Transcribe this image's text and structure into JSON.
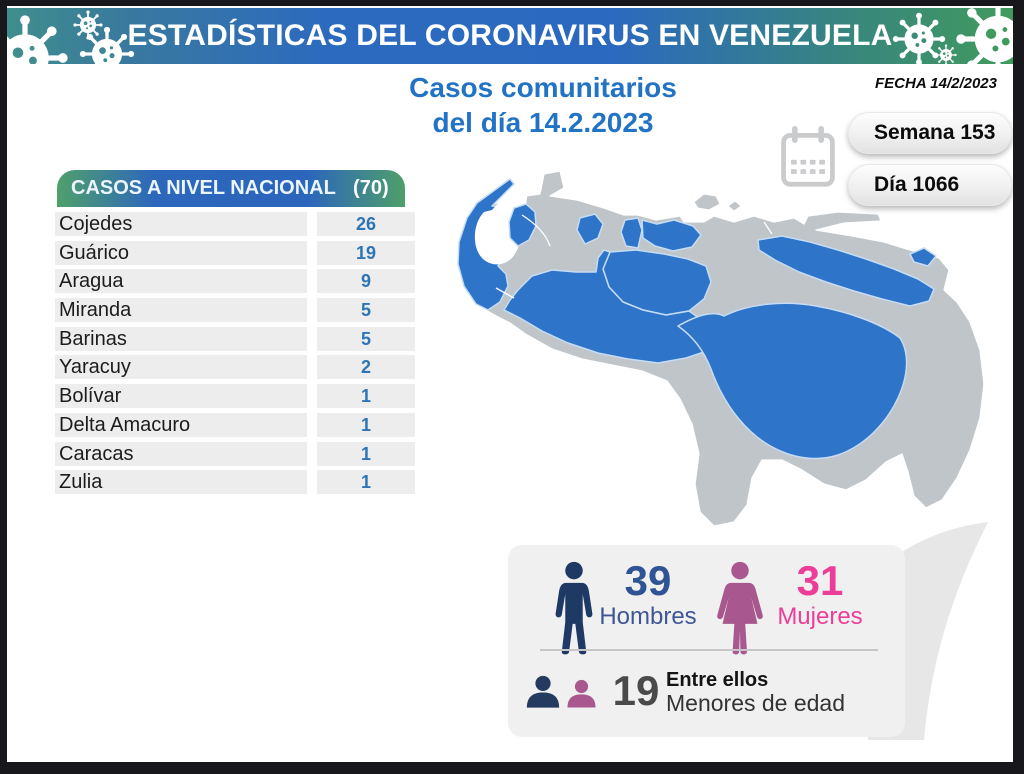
{
  "header": {
    "title": "ESTADÍSTICAS DEL CORONAVIRUS EN VENEZUELA"
  },
  "subtitle": {
    "line1": "Casos comunitarios",
    "line2": "del día 14.2.2023"
  },
  "meta": {
    "date_label": "FECHA 14/2/2023",
    "week_badge": "Semana 153",
    "day_badge": "Día 1066"
  },
  "cases_table": {
    "title": "CASOS A NIVEL NACIONAL",
    "total_label": "(70)",
    "rows": [
      {
        "state": "Cojedes",
        "cases": "26"
      },
      {
        "state": "Guárico",
        "cases": "19"
      },
      {
        "state": "Aragua",
        "cases": "9"
      },
      {
        "state": "Miranda",
        "cases": "5"
      },
      {
        "state": "Barinas",
        "cases": "5"
      },
      {
        "state": "Yaracuy",
        "cases": "2"
      },
      {
        "state": "Bolívar",
        "cases": "1"
      },
      {
        "state": "Delta Amacuro",
        "cases": "1"
      },
      {
        "state": "Caracas",
        "cases": "1"
      },
      {
        "state": "Zulia",
        "cases": "1"
      }
    ]
  },
  "demographics": {
    "men_value": "39",
    "men_label": "Hombres",
    "women_value": "31",
    "women_label": "Mujeres",
    "minors_value": "19",
    "minors_line1": "Entre ellos",
    "minors_line2": "Menores de edad"
  },
  "colors": {
    "banner_teal": "#3F8E8D",
    "banner_blue": "#2B69C0",
    "banner_green": "#419A5D",
    "subtitle_blue": "#2273C4",
    "map_highlight_blue": "#2E74C9",
    "map_base_gray": "#C0C5CA",
    "table_number_blue": "#2E75B6",
    "men_navy": "#1E3A64",
    "men_text_blue": "#2F5496",
    "women_pink": "#EC3E98",
    "women_plum": "#A8588E",
    "minors_gray": "#4A4A4A"
  },
  "chart_data": {
    "type": "table",
    "title": "CASOS A NIVEL NACIONAL (70)",
    "categories": [
      "Cojedes",
      "Guárico",
      "Aragua",
      "Miranda",
      "Barinas",
      "Yaracuy",
      "Bolívar",
      "Delta Amacuro",
      "Caracas",
      "Zulia"
    ],
    "values": [
      26,
      19,
      9,
      5,
      5,
      2,
      1,
      1,
      1,
      1
    ],
    "total": 70,
    "date": "14.2.2023",
    "week": 153,
    "day": 1066,
    "demographics": {
      "hombres": 39,
      "mujeres": 31,
      "menores_de_edad": 19
    },
    "map": {
      "type": "choropleth-highlight",
      "highlight_color": "#2E74C9",
      "base_color": "#C0C5CA"
    }
  }
}
